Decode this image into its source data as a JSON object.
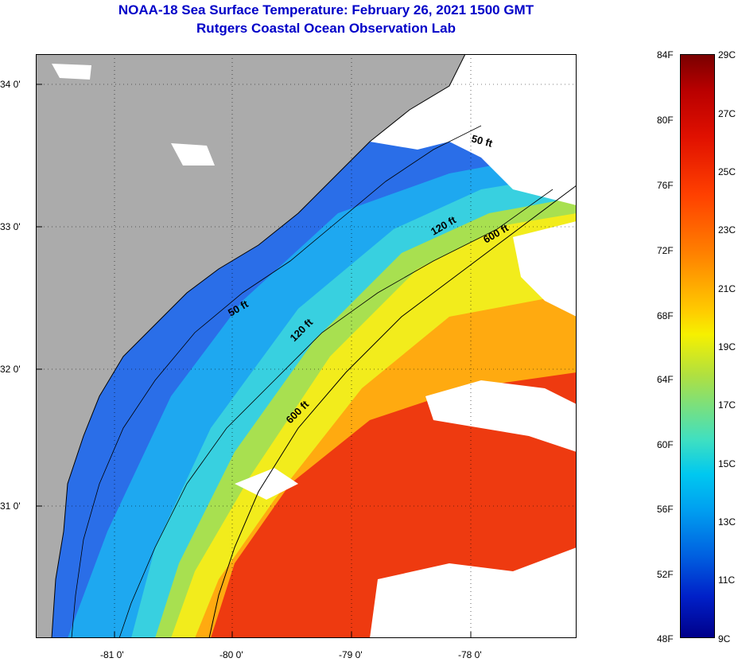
{
  "title": "NOAA-18 Sea Surface Temperature:  February 26, 2021 1500 GMT",
  "subtitle": "Rutgers Coastal Ocean Observation Lab",
  "lat_labels": [
    "34 0'",
    "33 0'",
    "32 0'",
    "31 0'"
  ],
  "lon_labels": [
    "-81 0'",
    "-80 0'",
    "-79 0'",
    "-78 0'"
  ],
  "isobaths": {
    "top_50": "50 ft",
    "top_120": "120 ft",
    "top_600": "600 ft",
    "mid_50": "50 ft",
    "mid_120": "120 ft",
    "mid_600": "600 ft"
  },
  "colorbar": {
    "fahrenheit": [
      "84F",
      "80F",
      "76F",
      "72F",
      "68F",
      "64F",
      "60F",
      "56F",
      "52F",
      "48F"
    ],
    "celsius": [
      "29C",
      "27C",
      "25C",
      "23C",
      "21C",
      "19C",
      "17C",
      "15C",
      "13C",
      "11C",
      "9C"
    ],
    "colors": {
      "max": "#7a0000",
      "warm": "#ff4000",
      "mid": "#f6f000",
      "cool": "#00c8f0",
      "min": "#00008a"
    }
  },
  "colors": {
    "land": "#ababab",
    "cloud": "#ffffff",
    "title": "#0000c8"
  }
}
